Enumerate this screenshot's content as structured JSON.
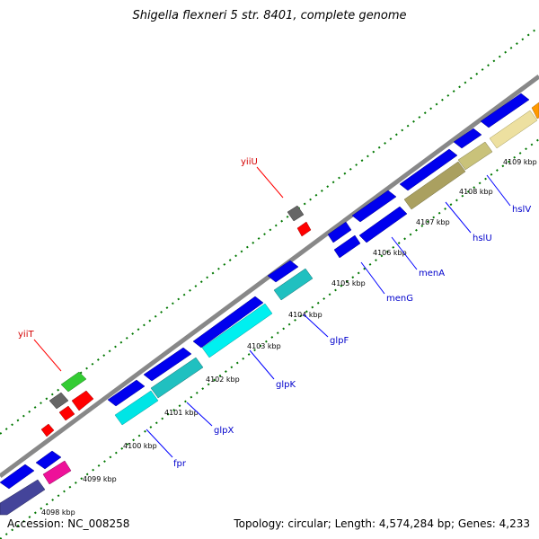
{
  "title": "Shigella flexneri 5 str. 8401, complete genome",
  "accession": "Accession: NC_008258",
  "topology": "Topology: circular; Length: 4,574,284 bp; Genes: 4,233",
  "kbp_labels": [
    "4098 kbp",
    "4099 kbp",
    "4100 kbp",
    "4101 kbp",
    "4102 kbp",
    "4103 kbp",
    "4104 kbp",
    "4105 kbp",
    "4106 kbp",
    "4107 kbp",
    "4108 kbp",
    "4109 kbp"
  ],
  "gene_labels_blue": [
    "fpr",
    "glpX",
    "glpK",
    "glpF",
    "menG",
    "menA",
    "hslU",
    "hslV"
  ],
  "gene_labels_red": [
    "yiiT",
    "yiiU"
  ],
  "colors": {
    "cds_blue": "#0000ee",
    "glp_cyan": "#00e5e5",
    "glp_teal": "#20c0c0",
    "hsl_khaki": "#c9c27a",
    "hsl_olive": "#aaa060",
    "red": "#ff0000",
    "green": "#33cc33",
    "magenta": "#ee1199",
    "purple": "#44449a",
    "gray": "#666666",
    "dot_green": "#007700"
  }
}
